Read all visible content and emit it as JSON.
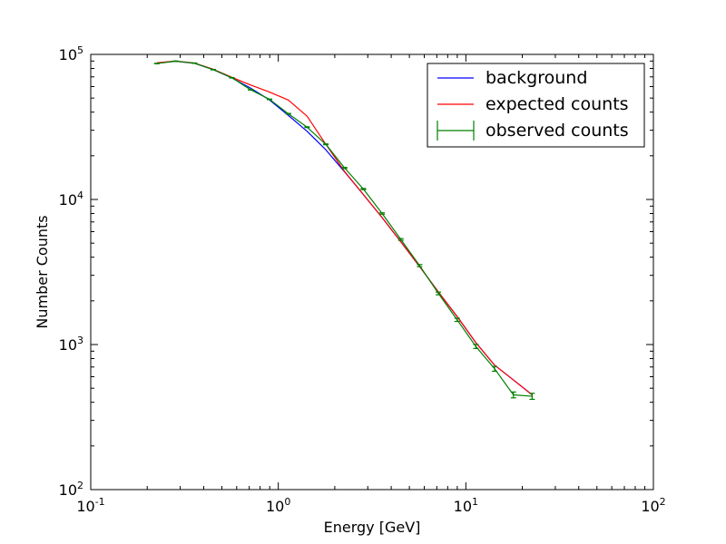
{
  "chart_data": {
    "type": "line",
    "xlabel": "Energy [GeV]",
    "ylabel": "Number Counts",
    "xscale": "log",
    "yscale": "log",
    "xlim": [
      0.1,
      100
    ],
    "ylim": [
      100,
      100000
    ],
    "grid": false,
    "legend_position": "top-right",
    "x_ticks": [
      {
        "value": 0.1,
        "base": "10",
        "exp": "-1"
      },
      {
        "value": 1,
        "base": "10",
        "exp": "0"
      },
      {
        "value": 10,
        "base": "10",
        "exp": "1"
      },
      {
        "value": 100,
        "base": "10",
        "exp": "2"
      }
    ],
    "y_ticks": [
      {
        "value": 100,
        "base": "10",
        "exp": "2"
      },
      {
        "value": 1000,
        "base": "10",
        "exp": "3"
      },
      {
        "value": 10000,
        "base": "10",
        "exp": "4"
      },
      {
        "value": 100000,
        "base": "10",
        "exp": "5"
      }
    ],
    "series": [
      {
        "name": "background",
        "kind": "line",
        "color": "#0000ff",
        "x": [
          0.225,
          0.283,
          0.357,
          0.45,
          0.566,
          0.713,
          0.898,
          1.131,
          1.424,
          1.793,
          2.257,
          2.842,
          3.578,
          4.504,
          5.67,
          7.138,
          8.986,
          11.31,
          14.24,
          17.93,
          22.57
        ],
        "y": [
          87000,
          89800,
          86800,
          78500,
          68800,
          58500,
          48500,
          38000,
          29500,
          22000,
          15500,
          10800,
          7500,
          5100,
          3450,
          2300,
          1560,
          1030,
          720,
          570,
          450
        ]
      },
      {
        "name": "expected counts",
        "kind": "line",
        "color": "#ff0000",
        "x": [
          0.225,
          0.283,
          0.357,
          0.45,
          0.566,
          0.713,
          0.898,
          1.131,
          1.424,
          1.793,
          2.257,
          2.842,
          3.578,
          4.504,
          5.67,
          7.138,
          8.986,
          11.31,
          14.24,
          17.93,
          22.57
        ],
        "y": [
          87500,
          90000,
          87200,
          79000,
          69500,
          61500,
          55000,
          48500,
          37500,
          24000,
          15600,
          10800,
          7500,
          5100,
          3450,
          2300,
          1560,
          1030,
          720,
          570,
          450
        ]
      },
      {
        "name": "observed counts",
        "kind": "errorbar",
        "color": "#008000",
        "x": [
          0.225,
          0.283,
          0.357,
          0.45,
          0.566,
          0.713,
          0.898,
          1.131,
          1.424,
          1.793,
          2.257,
          2.842,
          3.578,
          4.504,
          5.67,
          7.138,
          8.986,
          11.31,
          14.24,
          17.93,
          22.57
        ],
        "y": [
          86500,
          89800,
          87000,
          78500,
          69000,
          57000,
          49000,
          39000,
          31500,
          24000,
          16500,
          11800,
          8000,
          5300,
          3500,
          2250,
          1480,
          970,
          680,
          450,
          440
        ],
        "yerr": [
          300,
          300,
          300,
          280,
          260,
          240,
          220,
          200,
          180,
          150,
          130,
          110,
          90,
          73,
          59,
          47,
          38,
          31,
          26,
          21,
          21
        ]
      }
    ]
  }
}
